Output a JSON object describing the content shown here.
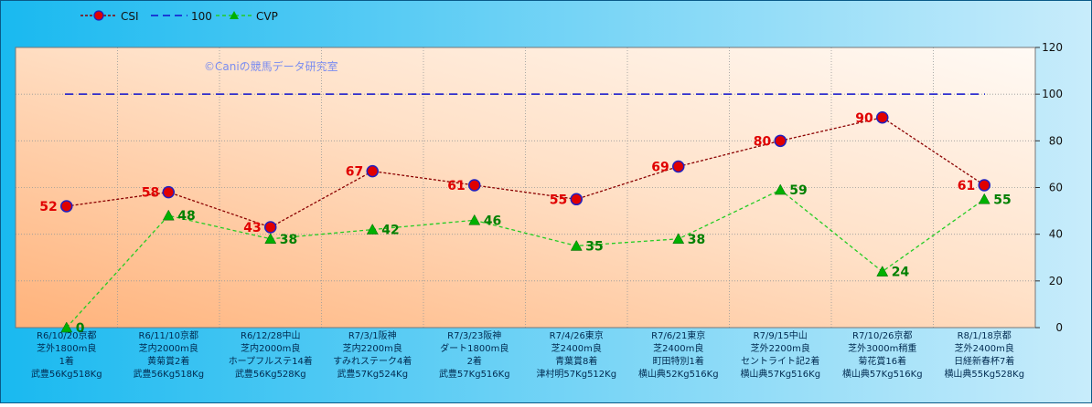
{
  "chart_data": {
    "type": "line",
    "categories": [
      [
        "R6/10/20京都",
        "芝外1800m良",
        "1着",
        "武豊56Kg518Kg"
      ],
      [
        "R6/11/10京都",
        "芝内2000m良",
        "黄菊賞2着",
        "武豊56Kg518Kg"
      ],
      [
        "R6/12/28中山",
        "芝内2000m良",
        "ホープフルステ14着",
        "武豊56Kg528Kg"
      ],
      [
        "R7/3/1阪神",
        "芝内2200m良",
        "すみれステーク4着",
        "武豊57Kg524Kg"
      ],
      [
        "R7/3/23阪神",
        "ダート1800m良",
        "2着",
        "武豊57Kg516Kg"
      ],
      [
        "R7/4/26東京",
        "芝2400m良",
        "青葉賞8着",
        "津村明57Kg512Kg"
      ],
      [
        "R7/6/21東京",
        "芝2400m良",
        "町田特別1着",
        "横山典52Kg516Kg"
      ],
      [
        "R7/9/15中山",
        "芝外2200m良",
        "セントライト記2着",
        "横山典57Kg516Kg"
      ],
      [
        "R7/10/26京都",
        "芝外3000m稍重",
        "菊花賞16着",
        "横山典57Kg516Kg"
      ],
      [
        "R8/1/18京都",
        "芝外2400m良",
        "日経新春杯7着",
        "横山典55Kg528Kg"
      ]
    ],
    "series": [
      {
        "name": "CSI",
        "values": [
          52,
          58,
          43,
          67,
          61,
          55,
          69,
          80,
          90,
          61
        ],
        "color": "#8b0000",
        "marker_fill": "#e00000",
        "marker_stroke": "#2020c0",
        "label_color": "#e00000"
      },
      {
        "name": "100",
        "values": [
          100,
          100,
          100,
          100,
          100,
          100,
          100,
          100,
          100,
          100
        ],
        "color": "#1010cc"
      },
      {
        "name": "CVP",
        "values": [
          0,
          48,
          38,
          42,
          46,
          35,
          38,
          59,
          24,
          55
        ],
        "color": "#22cc22",
        "marker_fill": "#00b000",
        "label_color": "#008000"
      }
    ],
    "ylim": [
      0,
      120
    ],
    "yticks": [
      0,
      20,
      40,
      60,
      80,
      100,
      120
    ],
    "y_axis_side": "right",
    "grid": true,
    "legend_position": "top-left",
    "watermark": "©Caniの競馬データ研究室"
  }
}
